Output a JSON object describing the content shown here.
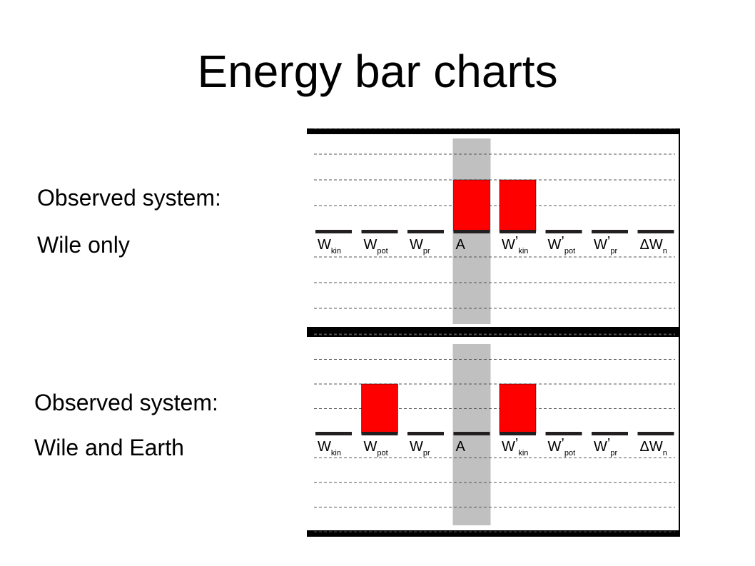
{
  "slide_title": "Energy bar charts",
  "panels": [
    {
      "line1": "Observed system:",
      "line2": "Wile only"
    },
    {
      "line1": "Observed system:",
      "line2": "Wile and Earth"
    }
  ],
  "chart_data": [
    {
      "type": "bar",
      "categories": [
        {
          "main": "W",
          "prime": "",
          "sub": "kin"
        },
        {
          "main": "W",
          "prime": "",
          "sub": "pot"
        },
        {
          "main": "W",
          "prime": "",
          "sub": "pr"
        },
        {
          "main": "A",
          "prime": "",
          "sub": ""
        },
        {
          "main": "W",
          "prime": "’",
          "sub": "kin"
        },
        {
          "main": "W",
          "prime": "’",
          "sub": "pot"
        },
        {
          "main": "W",
          "prime": "’",
          "sub": "pr"
        },
        {
          "main": "ΔW",
          "prime": "",
          "sub": "n"
        }
      ],
      "values": [
        0,
        0,
        0,
        2,
        2,
        0,
        0,
        0
      ],
      "ylim": [
        -4,
        4
      ],
      "grid": true,
      "highlighted_category": "A",
      "colors": {
        "bar": "#ff0000",
        "highlight": "#c0c0c0",
        "baseline": "#231f20"
      }
    },
    {
      "type": "bar",
      "categories": [
        {
          "main": "W",
          "prime": "",
          "sub": "kin"
        },
        {
          "main": "W",
          "prime": "",
          "sub": "pot"
        },
        {
          "main": "W",
          "prime": "",
          "sub": "pr"
        },
        {
          "main": "A",
          "prime": "",
          "sub": ""
        },
        {
          "main": "W",
          "prime": "’",
          "sub": "kin"
        },
        {
          "main": "W",
          "prime": "’",
          "sub": "pot"
        },
        {
          "main": "W",
          "prime": "’",
          "sub": "pr"
        },
        {
          "main": "ΔW",
          "prime": "",
          "sub": "n"
        }
      ],
      "values": [
        0,
        2,
        0,
        0,
        2,
        0,
        0,
        0
      ],
      "ylim": [
        -4,
        4
      ],
      "grid": true,
      "highlighted_category": "A",
      "colors": {
        "bar": "#ff0000",
        "highlight": "#c0c0c0",
        "baseline": "#231f20"
      }
    }
  ]
}
